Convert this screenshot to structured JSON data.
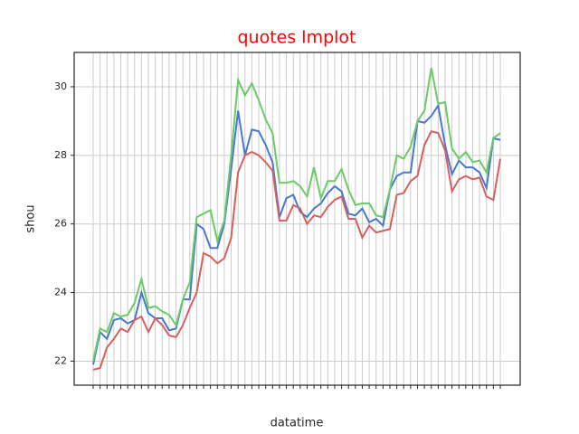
{
  "chart_data": {
    "type": "line",
    "title": "quotes lmplot",
    "x_label": "datatime",
    "y_label": "shou",
    "categories": [
      null,
      null,
      null,
      null,
      null,
      null,
      null,
      null,
      null,
      null,
      null,
      null,
      null,
      null,
      null,
      null,
      null,
      null,
      null,
      null,
      null,
      null,
      null,
      null,
      null,
      null,
      null,
      null,
      null,
      null,
      null,
      null,
      null,
      null,
      null,
      null,
      null,
      null,
      null,
      null,
      null,
      null,
      null,
      null,
      null,
      null,
      null,
      null,
      null,
      null,
      null,
      null,
      null,
      null,
      null,
      null,
      null,
      null,
      null,
      null
    ],
    "series": [
      {
        "color": "#4878d0",
        "values": [
          21.9,
          22.85,
          22.65,
          23.2,
          23.25,
          23.1,
          23.2,
          24.0,
          23.4,
          23.25,
          23.25,
          22.9,
          22.95,
          23.8,
          23.8,
          26.0,
          25.85,
          25.3,
          25.3,
          26.0,
          27.6,
          29.3,
          28.0,
          28.75,
          28.7,
          28.3,
          27.8,
          26.2,
          26.75,
          26.85,
          26.35,
          26.2,
          26.45,
          26.6,
          26.9,
          27.1,
          26.95,
          26.3,
          26.25,
          26.45,
          26.05,
          26.15,
          25.95,
          27.0,
          27.4,
          27.5,
          27.5,
          29.0,
          28.95,
          29.15,
          29.45,
          28.3,
          27.45,
          27.85,
          27.65,
          27.65,
          27.5,
          27.05,
          28.5,
          28.45
        ]
      },
      {
        "color": "#6acc64",
        "values": [
          22.0,
          22.95,
          22.85,
          23.4,
          23.3,
          23.35,
          23.7,
          24.4,
          23.55,
          23.6,
          23.45,
          23.35,
          23.05,
          23.8,
          24.3,
          26.2,
          26.3,
          26.4,
          25.5,
          26.1,
          28.0,
          30.2,
          29.75,
          30.1,
          29.6,
          29.05,
          28.65,
          27.2,
          27.2,
          27.25,
          27.1,
          26.8,
          27.65,
          26.75,
          27.25,
          27.25,
          27.6,
          27.0,
          26.55,
          26.6,
          26.6,
          26.25,
          26.2,
          27.0,
          28.0,
          27.9,
          28.25,
          29.0,
          29.3,
          30.55,
          29.5,
          29.55,
          28.2,
          27.9,
          28.1,
          27.8,
          27.85,
          27.5,
          28.5,
          28.65
        ]
      },
      {
        "color": "#d65f5f",
        "values": [
          21.75,
          21.8,
          22.4,
          22.65,
          22.95,
          22.85,
          23.2,
          23.3,
          22.85,
          23.25,
          23.05,
          22.75,
          22.7,
          23.05,
          23.55,
          24.0,
          25.15,
          25.05,
          24.85,
          25.0,
          25.6,
          27.5,
          28.0,
          28.1,
          28.0,
          27.8,
          27.55,
          26.1,
          26.1,
          26.55,
          26.45,
          26.0,
          26.25,
          26.2,
          26.5,
          26.7,
          26.8,
          26.15,
          26.15,
          25.6,
          25.95,
          25.75,
          25.8,
          25.85,
          26.85,
          26.9,
          27.25,
          27.4,
          28.3,
          28.7,
          28.65,
          28.15,
          26.95,
          27.3,
          27.4,
          27.3,
          27.35,
          26.8,
          26.7,
          27.9
        ]
      }
    ],
    "ylim": [
      21.3,
      31.0
    ],
    "yticks": [
      22,
      24,
      26,
      28,
      30
    ],
    "grid": true
  }
}
